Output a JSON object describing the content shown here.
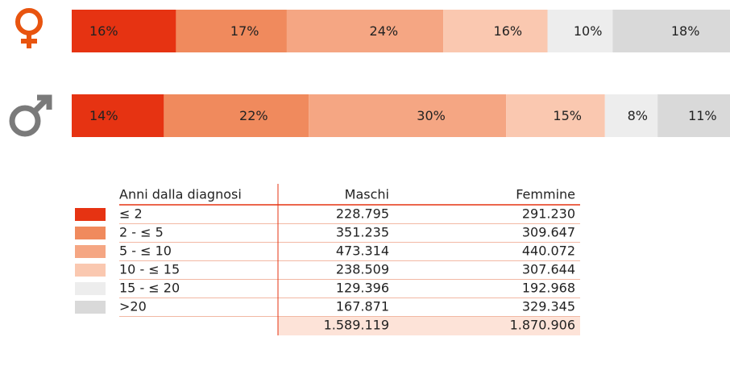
{
  "chart_data": {
    "type": "bar",
    "orientation": "horizontal",
    "stacked": true,
    "categories": [
      null,
      null
    ],
    "series": [
      {
        "name": "≤ 2",
        "color": "#e63312",
        "values": [
          16,
          14
        ],
        "value_labels": [
          "16%",
          "14%"
        ]
      },
      {
        "name": "2 - ≤ 5",
        "color": "#f08a5d",
        "values": [
          17,
          22
        ],
        "value_labels": [
          "17%",
          "22%"
        ]
      },
      {
        "name": "5 - ≤ 10",
        "color": "#f5a683",
        "values": [
          24,
          30
        ],
        "value_labels": [
          "24%",
          "30%"
        ]
      },
      {
        "name": "10 - ≤ 15",
        "color": "#fac8b0",
        "values": [
          16,
          15
        ],
        "value_labels": [
          "16%",
          "15%"
        ]
      },
      {
        "name": "15 - ≤ 20",
        "color": "#ededed",
        "values": [
          10,
          8
        ],
        "value_labels": [
          "10%",
          "8%"
        ]
      },
      {
        "name": ">20",
        "color": "#d9d9d9",
        "values": [
          18,
          11
        ],
        "value_labels": [
          "18%",
          "11%"
        ]
      }
    ]
  },
  "table": {
    "header": [
      "Anni dalla diagnosi",
      "Maschi",
      "Femmine"
    ],
    "rows": [
      [
        "228.795",
        "291.230"
      ],
      [
        "351.235",
        "309.647"
      ],
      [
        "473.314",
        "440.072"
      ],
      [
        "238.509",
        "307.644"
      ],
      [
        "129.396",
        "192.968"
      ],
      [
        "167.871",
        "329.345"
      ]
    ],
    "totals": [
      "1.589.119",
      "1.870.906"
    ]
  }
}
